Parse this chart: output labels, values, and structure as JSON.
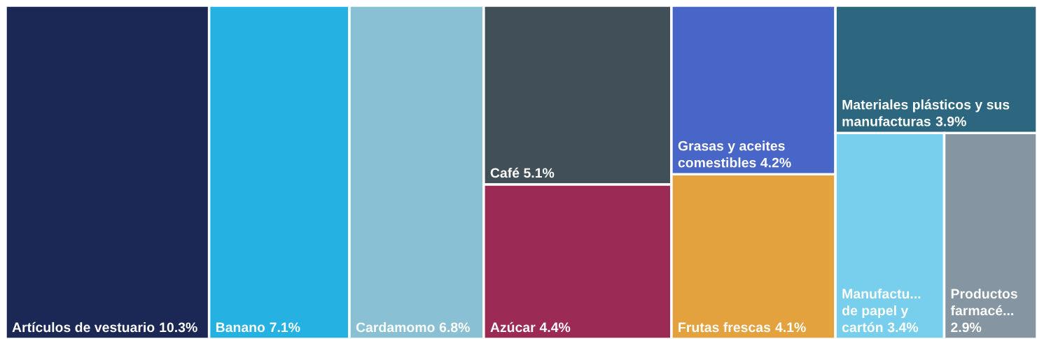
{
  "chart_data": {
    "type": "other",
    "categories": [
      "Artículos de vestuario",
      "Banano",
      "Cardamomo",
      "Café",
      "Azúcar",
      "Grasas y aceites comestibles",
      "Frutas frescas",
      "Materiales plásticos y sus manufacturas",
      "Manufactu... de papel y cartón",
      "Productos farmacé..."
    ],
    "values": [
      10.3,
      7.1,
      6.8,
      5.1,
      4.4,
      4.2,
      4.1,
      3.9,
      3.4,
      2.9
    ],
    "value_labels": [
      "10.3%",
      "7.1%",
      "6.8%",
      "5.1%",
      "4.4%",
      "4.2%",
      "4.1%",
      "3.9%",
      "3.4%",
      "2.9%"
    ],
    "colors": [
      "#1b2754",
      "#25b1e2",
      "#89c0d4",
      "#414f58",
      "#9b2a55",
      "#4766c8",
      "#e4a23f",
      "#2d677f",
      "#78cfed",
      "#8595a2"
    ]
  }
}
